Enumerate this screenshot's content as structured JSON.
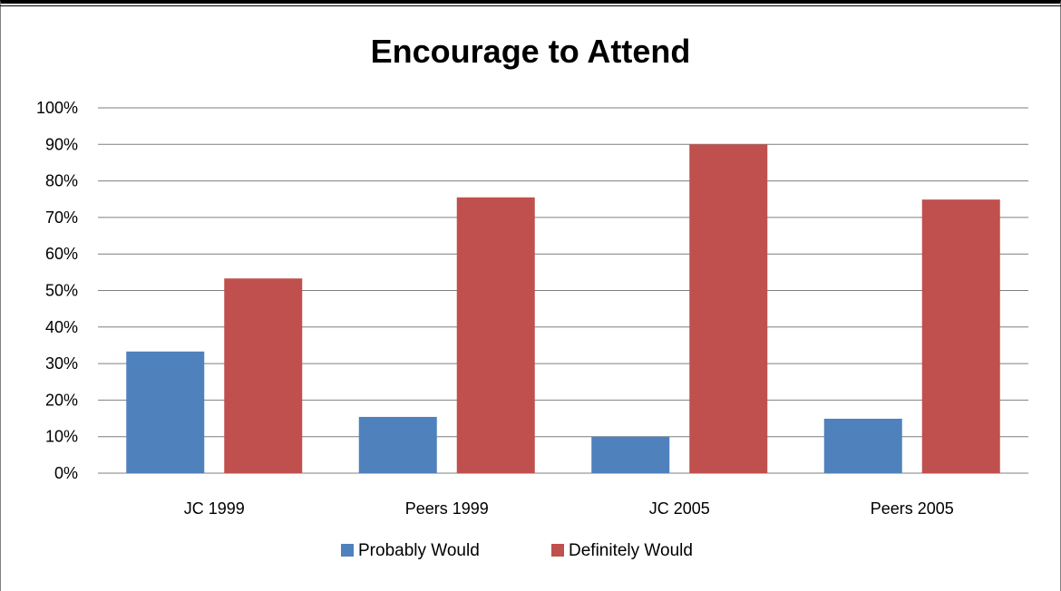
{
  "chart_data": {
    "type": "bar",
    "title": "Encourage to Attend",
    "categories": [
      "JC 1999",
      "Peers 1999",
      "JC 2005",
      "Peers 2005"
    ],
    "series": [
      {
        "name": "Probably Would",
        "values": [
          33.3,
          15.4,
          10.0,
          14.9
        ],
        "color": "#4F81BD"
      },
      {
        "name": "Definitely Would",
        "values": [
          53.3,
          75.5,
          90.0,
          74.9
        ],
        "color": "#C0504D"
      }
    ],
    "ylim": [
      0,
      100
    ],
    "yticks": [
      "0%",
      "10%",
      "20%",
      "30%",
      "40%",
      "50%",
      "60%",
      "70%",
      "80%",
      "90%",
      "100%"
    ],
    "grid": true,
    "legend": "bottom"
  }
}
